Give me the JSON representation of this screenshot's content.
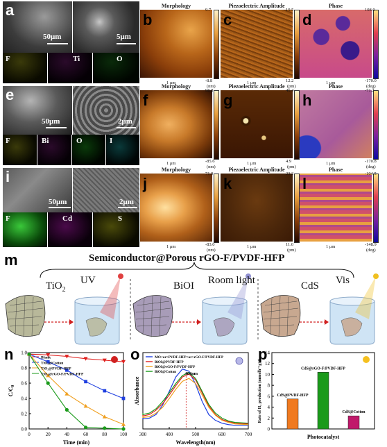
{
  "row1": {
    "label": "a",
    "scale_left": "50μm",
    "scale_right": "5μm",
    "eds": [
      "F",
      "Ti",
      "O"
    ],
    "afm": [
      {
        "label": "b",
        "title": "Morphology",
        "max": "9.7",
        "min": "-8.8",
        "unit": "(nm)",
        "scale": "1 μm"
      },
      {
        "label": "c",
        "title": "Piezoelectric Amplitude",
        "max": "19.5",
        "min": "12.2",
        "unit": "(pm)",
        "scale": "1 μm"
      },
      {
        "label": "d",
        "title": "Phase",
        "max": "108.0",
        "min": "-170.0",
        "unit": "(deg)",
        "scale": "1 μm"
      }
    ]
  },
  "row2": {
    "label": "e",
    "scale_left": "50μm",
    "scale_right": "2μm",
    "eds": [
      "F",
      "Bi",
      "O",
      "I"
    ],
    "afm": [
      {
        "label": "f",
        "title": "Morphology",
        "max": "98.8",
        "min": "-85.6",
        "unit": "(nm)",
        "scale": "1 μm"
      },
      {
        "label": "g",
        "title": "Piezoelectric Amplitude",
        "max": "46.4",
        "min": "4.9",
        "unit": "(pm)",
        "scale": "1 μm"
      },
      {
        "label": "h",
        "title": "Phase",
        "max": "-71.2",
        "min": "-170.8",
        "unit": "(deg)",
        "scale": "1 μm"
      }
    ]
  },
  "row3": {
    "label": "i",
    "scale_left": "50μm",
    "scale_right": "2μm",
    "eds": [
      "F",
      "Cd",
      "S"
    ],
    "afm": [
      {
        "label": "j",
        "title": "Morphology",
        "max": "71.9",
        "min": "-83.0",
        "unit": "(nm)",
        "scale": "1 μm"
      },
      {
        "label": "k",
        "title": "Piezoelectric Amplitude",
        "max": "23.2",
        "min": "11.0",
        "unit": "(pm)",
        "scale": "1 μm"
      },
      {
        "label": "l",
        "title": "Phase",
        "max": "-104.5",
        "min": "-148.9",
        "unit": "(deg)",
        "scale": "1 μm"
      }
    ]
  },
  "schematic": {
    "label": "m",
    "header": "Semiconductor@Porous rGO-F/PVDF-HFP",
    "items": [
      {
        "material": "TiO",
        "material_sub": "2",
        "light": "UV"
      },
      {
        "material": "BiOI",
        "material_sub": "",
        "light": "Room light"
      },
      {
        "material": "CdS",
        "material_sub": "",
        "light": "Vis"
      }
    ]
  },
  "chart_data": [
    {
      "panel": "n",
      "type": "line",
      "xlabel": "Time (min)",
      "ylabel": "C/C",
      "ylabel_sub": "0",
      "xlim": [
        0,
        100
      ],
      "ylim": [
        0.0,
        1.0
      ],
      "xticks": [
        0,
        20,
        40,
        60,
        80,
        100
      ],
      "yticks": [
        "0.0",
        "0.2",
        "0.4",
        "0.6",
        "0.8",
        "1.0"
      ],
      "x": [
        0,
        20,
        40,
        60,
        80,
        100
      ],
      "series": [
        {
          "name": "Blank",
          "color": "#e0201e",
          "marker": "triangle-down",
          "values": [
            0.98,
            0.97,
            0.95,
            0.92,
            0.9,
            0.88
          ]
        },
        {
          "name": "TiO₂@Cotton",
          "color": "#1f3fe0",
          "marker": "square",
          "values": [
            0.98,
            0.88,
            0.77,
            0.62,
            0.5,
            0.4
          ]
        },
        {
          "name": "TiO₂@PVDF-HFP",
          "color": "#f0a020",
          "marker": "triangle",
          "values": [
            0.98,
            0.7,
            0.46,
            0.3,
            0.16,
            0.06
          ]
        },
        {
          "name": "TiO₂@rGO-F/PVDF-HFP",
          "color": "#1a9a1a",
          "marker": "circle",
          "values": [
            0.98,
            0.6,
            0.25,
            0.02,
            0.01,
            0.0
          ]
        }
      ]
    },
    {
      "panel": "o",
      "type": "line",
      "xlabel": "Wavelength(nm)",
      "ylabel": "Absorbance",
      "xlim": [
        300,
        700
      ],
      "xticks": [
        300,
        400,
        500,
        600,
        700
      ],
      "annotation": "464nm",
      "annotation_x": 464,
      "series": [
        {
          "name": "MO<or>PVDF-HFP<or>rGO-F/PVDF-HFP",
          "color": "#1f3fe0",
          "values": [
            0.15,
            0.14,
            0.15,
            0.2,
            0.33,
            0.52,
            0.72,
            0.83,
            0.8,
            0.62,
            0.38,
            0.2,
            0.12,
            0.08,
            0.06,
            0.05,
            0.05
          ],
          "x": [
            280,
            300,
            325,
            350,
            375,
            400,
            425,
            450,
            475,
            500,
            525,
            550,
            575,
            600,
            625,
            650,
            700
          ]
        },
        {
          "name": "BiOI@PVDF-HFP",
          "color": "#e0201e",
          "values": [
            0.2,
            0.18,
            0.2,
            0.26,
            0.35,
            0.47,
            0.6,
            0.72,
            0.76,
            0.68,
            0.5,
            0.32,
            0.2,
            0.13,
            0.1,
            0.08,
            0.07
          ],
          "x": [
            280,
            300,
            325,
            350,
            375,
            400,
            425,
            450,
            475,
            500,
            525,
            550,
            575,
            600,
            625,
            650,
            700
          ]
        },
        {
          "name": "BiOI@rGO-F/PVDF-HFP",
          "color": "#f0a020",
          "values": [
            0.18,
            0.16,
            0.17,
            0.22,
            0.3,
            0.42,
            0.55,
            0.66,
            0.7,
            0.63,
            0.47,
            0.3,
            0.19,
            0.12,
            0.09,
            0.07,
            0.06
          ],
          "x": [
            280,
            300,
            325,
            350,
            375,
            400,
            425,
            450,
            475,
            500,
            525,
            550,
            575,
            600,
            625,
            650,
            700
          ]
        },
        {
          "name": "BiOI@Cotton",
          "color": "#1a9a1a",
          "values": [
            0.22,
            0.2,
            0.22,
            0.28,
            0.38,
            0.5,
            0.63,
            0.74,
            0.78,
            0.7,
            0.52,
            0.34,
            0.22,
            0.15,
            0.11,
            0.09,
            0.08
          ],
          "x": [
            280,
            300,
            325,
            350,
            375,
            400,
            425,
            450,
            475,
            500,
            525,
            550,
            575,
            600,
            625,
            650,
            700
          ]
        }
      ]
    },
    {
      "panel": "p",
      "type": "bar",
      "xlabel": "Photocatalyst",
      "ylabel": "Rate of H₂ production (mmolh⁻¹g⁻¹)",
      "ylim": [
        0,
        14
      ],
      "yticks": [
        0,
        2,
        4,
        6,
        8,
        10,
        12,
        14
      ],
      "categories": [
        "CdS@PVDF-HFP",
        "CdS@rGO-F/PVDF-HFP",
        "CdS@Cotton"
      ],
      "values": [
        5.5,
        10.4,
        2.4
      ],
      "colors": [
        "#f07a20",
        "#1a9a1a",
        "#c0186a"
      ]
    }
  ]
}
